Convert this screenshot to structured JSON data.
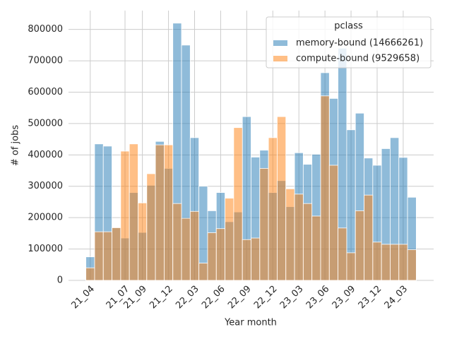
{
  "chart_data": {
    "type": "bar",
    "overlap": true,
    "x_label": "Year month",
    "y_label": "# of jobs",
    "legend_title": "pclass",
    "legend_position": "upper right",
    "grid": true,
    "categories": [
      "21_04",
      null,
      null,
      null,
      "21_07",
      null,
      "21_09",
      null,
      null,
      "21_12",
      null,
      null,
      "22_03",
      null,
      null,
      "22_06",
      null,
      null,
      "22_09",
      null,
      null,
      "22_12",
      null,
      null,
      "23_03",
      null,
      null,
      "23_06",
      null,
      null,
      "23_09",
      null,
      null,
      "23_12",
      null,
      null,
      "24_03",
      null
    ],
    "series": [
      {
        "name": "memory-bound (14666261)",
        "color": "#1f77b4",
        "values": [
          75000,
          435000,
          428000,
          168000,
          135000,
          280000,
          153000,
          303000,
          443000,
          357000,
          820000,
          750000,
          455000,
          300000,
          222000,
          280000,
          187000,
          218000,
          522000,
          393000,
          415000,
          280000,
          318000,
          235000,
          407000,
          370000,
          402000,
          662000,
          580000,
          740000,
          480000,
          533000,
          390000,
          367000,
          420000,
          455000,
          392000,
          265000
        ]
      },
      {
        "name": "compute-bound (9529658)",
        "color": "#ff7f0e",
        "values": [
          40000,
          155000,
          155000,
          168000,
          412000,
          435000,
          247000,
          340000,
          432000,
          432000,
          245000,
          198000,
          220000,
          55000,
          152000,
          165000,
          262000,
          487000,
          130000,
          135000,
          357000,
          455000,
          522000,
          292000,
          275000,
          245000,
          205000,
          588000,
          367000,
          167000,
          88000,
          222000,
          272000,
          122000,
          115000,
          115000,
          115000,
          98000
        ]
      }
    ],
    "ylim": [
      0,
      860000
    ],
    "yticks": [
      0,
      100000,
      200000,
      300000,
      400000,
      500000,
      600000,
      700000,
      800000
    ]
  }
}
